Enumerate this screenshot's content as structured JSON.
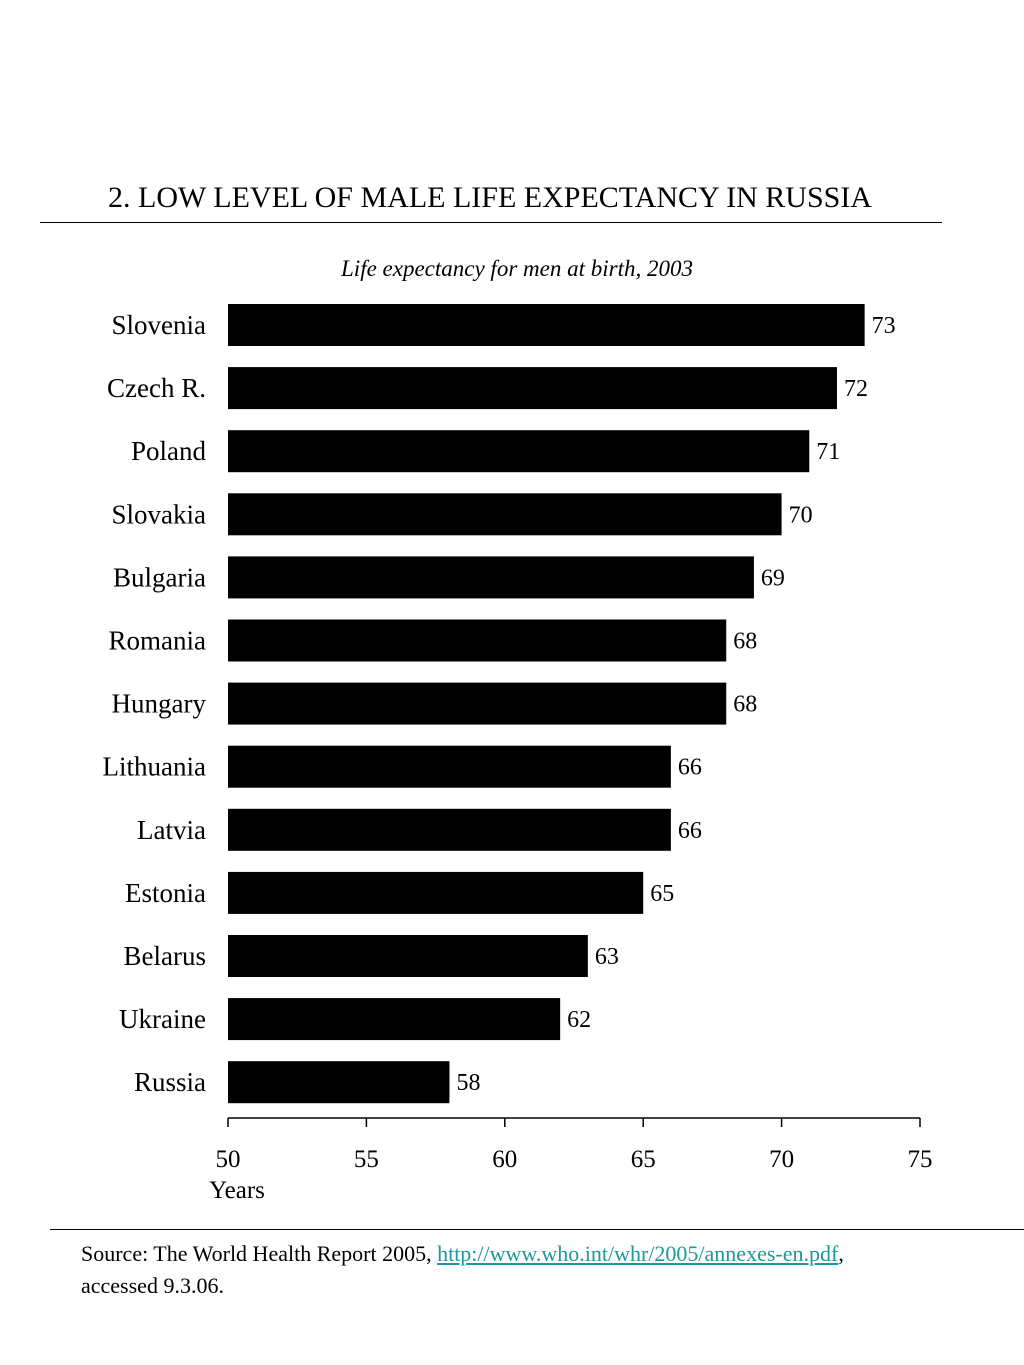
{
  "page": {
    "title": "2. LOW LEVEL OF MALE LIFE EXPECTANCY IN RUSSIA",
    "subtitle": "Life expectancy for men at birth, 2003"
  },
  "chart_data": {
    "type": "bar",
    "orientation": "horizontal",
    "categories": [
      "Slovenia",
      "Czech R.",
      "Poland",
      "Slovakia",
      "Bulgaria",
      "Romania",
      "Hungary",
      "Lithuania",
      "Latvia",
      "Estonia",
      "Belarus",
      "Ukraine",
      "Russia"
    ],
    "values": [
      73,
      72,
      71,
      70,
      69,
      68,
      68,
      66,
      66,
      65,
      63,
      62,
      58
    ],
    "data_labels": [
      "73",
      "72",
      "71",
      "70",
      "69",
      "68",
      "68",
      "66",
      "66",
      "65",
      "63",
      "62",
      "58"
    ],
    "xlim": [
      50,
      75
    ],
    "xticks": [
      50,
      55,
      60,
      65,
      70,
      75
    ],
    "xtick_labels": [
      "50",
      "55",
      "60",
      "65",
      "70",
      "75"
    ],
    "xlabel": "Years",
    "bar_color": "#000000",
    "grid": false,
    "legend": "none"
  },
  "source": {
    "prefix": "Source: The World Health Report 2005, ",
    "link_text": "http://www.who.int/whr/2005/annexes-en.pdf",
    "suffix": ",",
    "accessed": "accessed 9.3.06.",
    "link_color": "#1a9a9a"
  }
}
